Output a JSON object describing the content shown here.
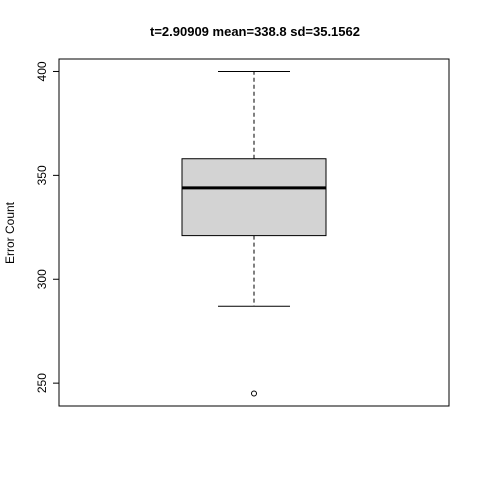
{
  "chart_data": {
    "type": "box",
    "title": "t=2.90909 mean=338.8 sd=35.1562",
    "xlabel": "",
    "ylabel": "Error Count",
    "ylim": [
      239,
      406
    ],
    "y_ticks": [
      250,
      300,
      350,
      400
    ],
    "grid": false,
    "series": [
      {
        "whisker_low": 287,
        "q1": 321,
        "median": 344,
        "q3": 358,
        "whisker_high": 400,
        "outliers": [
          245
        ]
      }
    ],
    "colors": {
      "box_fill": "#d3d3d3",
      "stroke": "#000000",
      "background": "#ffffff"
    }
  }
}
